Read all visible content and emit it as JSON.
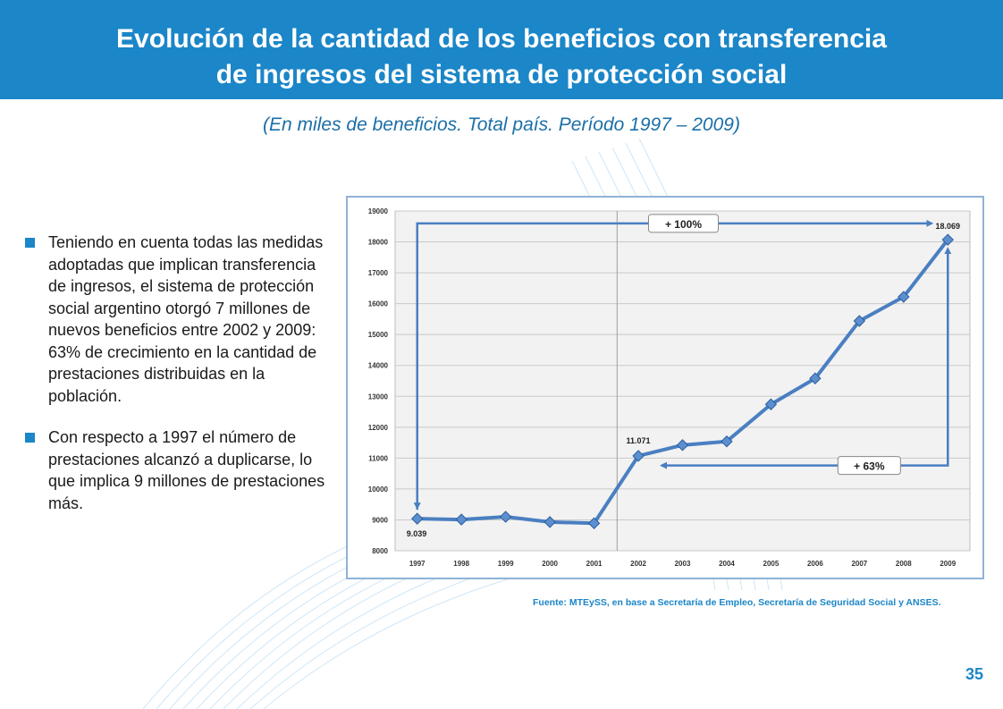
{
  "header": {
    "title_line1": "Evolución de la cantidad de los beneficios con transferencia",
    "title_line2": "de ingresos del sistema de protección social",
    "subtitle": "(En miles de beneficios. Total país. Período 1997 – 2009)"
  },
  "bullets": [
    {
      "text": "Teniendo en cuenta todas las medidas adoptadas que implican transferencia de ingresos, el sistema de protección social argentino otorgó 7 millones de nuevos beneficios entre 2002 y 2009: 63% de crecimiento en la cantidad de prestaciones distribuidas en la población."
    },
    {
      "text": "Con respecto a 1997 el número de prestaciones alcanzó a duplicarse, lo que implica 9 millones de prestaciones más."
    }
  ],
  "source": "Fuente: MTEySS, en base a Secretaría de Empleo, Secretaría de Seguridad Social y ANSES.",
  "page_number": "35",
  "colors": {
    "header": "#1b86c8",
    "line": "#4a7fc1",
    "marker": "#5b8fd0",
    "arrow": "#4a7fc1",
    "accent_text": "#1b86c8"
  },
  "chart_data": {
    "type": "line",
    "categories": [
      "1997",
      "1998",
      "1999",
      "2000",
      "2001",
      "2002",
      "2003",
      "2004",
      "2005",
      "2006",
      "2007",
      "2008",
      "2009"
    ],
    "series": [
      {
        "name": "Beneficios",
        "values": [
          9039,
          9010,
          9100,
          8930,
          8890,
          11071,
          11420,
          11540,
          12740,
          13580,
          15440,
          16220,
          18069
        ]
      }
    ],
    "y_ticks": [
      8000,
      9000,
      10000,
      11000,
      12000,
      13000,
      14000,
      15000,
      16000,
      17000,
      18000,
      19000
    ],
    "ylim": [
      8000,
      19000
    ],
    "grid": true,
    "vertical_marker_category": "2002",
    "data_labels": [
      {
        "category": "1997",
        "label": "9.039"
      },
      {
        "category": "2002",
        "label": "11.071"
      },
      {
        "category": "2009",
        "label": "18.069"
      }
    ],
    "annotations": [
      {
        "label": "+ 100%",
        "from": "1997",
        "to": "2009"
      },
      {
        "label": "+ 63%",
        "from": "2002",
        "to": "2009"
      }
    ]
  }
}
